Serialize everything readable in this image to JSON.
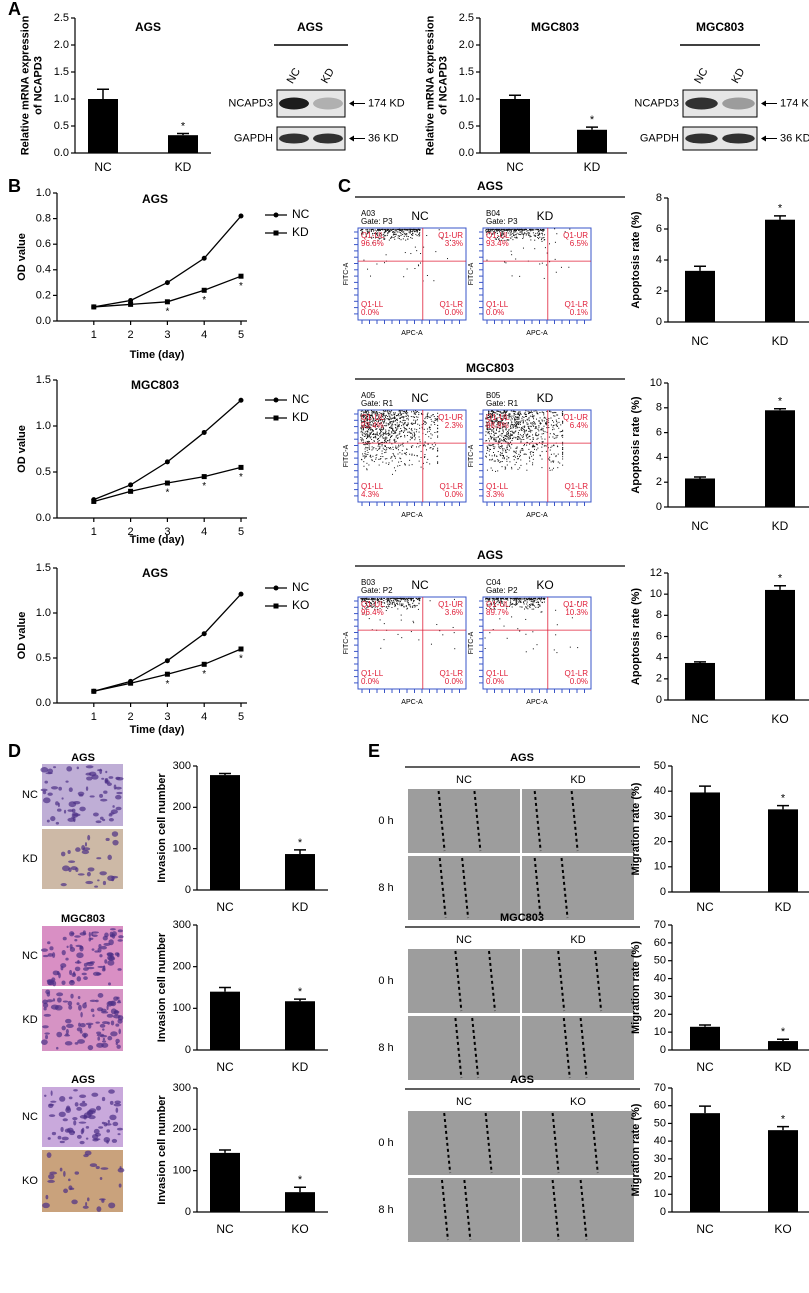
{
  "panel_labels": [
    "A",
    "B",
    "C",
    "D",
    "E"
  ],
  "blots": [
    {
      "title": "AGS",
      "lanes": [
        "NC",
        "KD"
      ],
      "bands": [
        {
          "name": "NCAPD3",
          "size": "174 KD"
        },
        {
          "name": "GAPDH",
          "size": "36 KD"
        }
      ]
    },
    {
      "title": "MGC803",
      "lanes": [
        "NC",
        "KD"
      ],
      "bands": [
        {
          "name": "NCAPD3",
          "size": "174 KD"
        },
        {
          "name": "GAPDH",
          "size": "36 KD"
        }
      ]
    }
  ],
  "flow_axes": {
    "x": "APC-A",
    "y": "FITC-A"
  },
  "flow_panels": [
    {
      "title": "AGS",
      "plots": [
        {
          "group": "NC",
          "sample": "A03",
          "gate": "Gate: P3",
          "quadrants": [
            [
              "Q1-UL",
              "96.6%"
            ],
            [
              "Q1-UR",
              "3.3%"
            ],
            [
              "Q1-LL",
              "0.0%"
            ],
            [
              "Q1-LR",
              "0.0%"
            ]
          ]
        },
        {
          "group": "KD",
          "sample": "B04",
          "gate": "Gate: P3",
          "quadrants": [
            [
              "Q1-UL",
              "93.4%"
            ],
            [
              "Q1-UR",
              "6.5%"
            ],
            [
              "Q1-LL",
              "0.0%"
            ],
            [
              "Q1-LR",
              "0.1%"
            ]
          ]
        }
      ]
    },
    {
      "title": "MGC803",
      "plots": [
        {
          "group": "NC",
          "sample": "A05",
          "gate": "Gate: R1",
          "quadrants": [
            [
              "Q1-UL",
              "93.4%"
            ],
            [
              "Q1-UR",
              "2.3%"
            ],
            [
              "Q1-LL",
              "4.3%"
            ],
            [
              "Q1-LR",
              "0.0%"
            ]
          ]
        },
        {
          "group": "KD",
          "sample": "B05",
          "gate": "Gate: R1",
          "quadrants": [
            [
              "Q1-UL",
              "88.8%"
            ],
            [
              "Q1-UR",
              "6.4%"
            ],
            [
              "Q1-LL",
              "3.3%"
            ],
            [
              "Q1-LR",
              "1.5%"
            ]
          ]
        }
      ]
    },
    {
      "title": "AGS",
      "plots": [
        {
          "group": "NC",
          "sample": "B03",
          "gate": "Gate: P2",
          "quadrants": [
            [
              "Q1-UL",
              "96.4%"
            ],
            [
              "Q1-UR",
              "3.6%"
            ],
            [
              "Q1-LL",
              "0.0%"
            ],
            [
              "Q1-LR",
              "0.0%"
            ]
          ]
        },
        {
          "group": "KO",
          "sample": "C04",
          "gate": "Gate: P2",
          "quadrants": [
            [
              "Q1-UL",
              "89.7%"
            ],
            [
              "Q1-UR",
              "10.3%"
            ],
            [
              "Q1-LL",
              "0.0%"
            ],
            [
              "Q1-LR",
              "0.0%"
            ]
          ]
        }
      ]
    }
  ],
  "invasion_panels": [
    {
      "title": "AGS",
      "rows": [
        "NC",
        "KD"
      ]
    },
    {
      "title": "MGC803",
      "rows": [
        "NC",
        "KD"
      ]
    },
    {
      "title": "AGS",
      "rows": [
        "NC",
        "KO"
      ]
    }
  ],
  "wound_panels": [
    {
      "title": "AGS",
      "columns": [
        "NC",
        "KD"
      ],
      "rows": [
        "0 h",
        "8 h"
      ]
    },
    {
      "title": "MGC803",
      "columns": [
        "NC",
        "KD"
      ],
      "rows": [
        "0 h",
        "8 h"
      ]
    },
    {
      "title": "AGS",
      "columns": [
        "NC",
        "KO"
      ],
      "rows": [
        "0 h",
        "8 h"
      ]
    }
  ],
  "chart_data": [
    {
      "type": "bar",
      "title": "AGS",
      "ylabel": [
        "Relative mRNA expression",
        "of NCAPD3"
      ],
      "categories": [
        "NC",
        "KD"
      ],
      "values": [
        1.0,
        0.33
      ],
      "errors": [
        0.18,
        0.03
      ],
      "significance": [
        null,
        "*"
      ],
      "color": "#000000",
      "ylim": [
        0,
        2.5
      ],
      "yticks": [
        {
          "value": 0,
          "label": "0.0"
        },
        0.5,
        {
          "value": 1,
          "label": "1.0"
        },
        1.5,
        {
          "value": 2,
          "label": "2.0"
        },
        2.5
      ]
    },
    {
      "type": "bar",
      "title": "MGC803",
      "ylabel": [
        "Relative mRNA expression",
        "of NCAPD3"
      ],
      "categories": [
        "NC",
        "KD"
      ],
      "values": [
        1.0,
        0.43
      ],
      "errors": [
        0.07,
        0.05
      ],
      "significance": [
        null,
        "*"
      ],
      "color": "#000000",
      "ylim": [
        0,
        2.5
      ],
      "yticks": [
        {
          "value": 0,
          "label": "0.0"
        },
        0.5,
        {
          "value": 1,
          "label": "1.0"
        },
        1.5,
        {
          "value": 2,
          "label": "2.0"
        },
        2.5
      ]
    },
    {
      "type": "line",
      "title": "AGS",
      "xlabel": "Time (day)",
      "ylabel": "OD value",
      "x": [
        1,
        2,
        3,
        4,
        5
      ],
      "xlim": [
        0,
        5
      ],
      "xticks": [
        1,
        2,
        3,
        4,
        5
      ],
      "ylim": [
        0,
        1
      ],
      "yticks": [
        {
          "value": 0,
          "label": "0.0"
        },
        0.2,
        0.4,
        0.6,
        0.8,
        {
          "value": 1,
          "label": "1.0"
        }
      ],
      "series": [
        {
          "name": "NC",
          "color": "#000000",
          "marker": "circle",
          "values": [
            0.11,
            0.16,
            0.3,
            0.49,
            0.82
          ]
        },
        {
          "name": "KD",
          "color": "#000000",
          "marker": "square",
          "values": [
            0.11,
            0.13,
            0.15,
            0.24,
            0.35
          ]
        }
      ],
      "significance": [
        null,
        null,
        "*",
        "*",
        "*"
      ]
    },
    {
      "type": "line",
      "title": "MGC803",
      "xlabel": "Time (day)",
      "ylabel": "OD value",
      "x": [
        1,
        2,
        3,
        4,
        5
      ],
      "xlim": [
        0,
        5
      ],
      "xticks": [
        1,
        2,
        3,
        4,
        5
      ],
      "ylim": [
        0,
        1.5
      ],
      "yticks": [
        {
          "value": 0,
          "label": "0.0"
        },
        0.5,
        {
          "value": 1,
          "label": "1.0"
        },
        1.5
      ],
      "series": [
        {
          "name": "NC",
          "color": "#000000",
          "marker": "circle",
          "values": [
            0.2,
            0.36,
            0.61,
            0.93,
            1.28
          ]
        },
        {
          "name": "KD",
          "color": "#000000",
          "marker": "square",
          "values": [
            0.18,
            0.29,
            0.38,
            0.45,
            0.55
          ]
        }
      ],
      "significance": [
        null,
        null,
        "*",
        "*",
        "*"
      ]
    },
    {
      "type": "line",
      "title": "AGS",
      "xlabel": "Time (day)",
      "ylabel": "OD value",
      "x": [
        1,
        2,
        3,
        4,
        5
      ],
      "xlim": [
        0,
        5
      ],
      "xticks": [
        1,
        2,
        3,
        4,
        5
      ],
      "ylim": [
        0,
        1.5
      ],
      "yticks": [
        {
          "value": 0,
          "label": "0.0"
        },
        0.5,
        {
          "value": 1,
          "label": "1.0"
        },
        1.5
      ],
      "series": [
        {
          "name": "NC",
          "color": "#000000",
          "marker": "circle",
          "values": [
            0.13,
            0.24,
            0.47,
            0.77,
            1.21
          ]
        },
        {
          "name": "KO",
          "color": "#000000",
          "marker": "square",
          "values": [
            0.13,
            0.22,
            0.32,
            0.43,
            0.6
          ]
        }
      ],
      "significance": [
        null,
        null,
        "*",
        "*",
        "*"
      ]
    },
    {
      "type": "bar",
      "ylabel": "Apoptosis rate (%)",
      "categories": [
        "NC",
        "KD"
      ],
      "values": [
        3.3,
        6.6
      ],
      "errors": [
        0.3,
        0.25
      ],
      "significance": [
        null,
        "*"
      ],
      "color": "#000000",
      "ylim": [
        0,
        8
      ],
      "yticks": [
        0,
        2,
        4,
        6,
        8
      ]
    },
    {
      "type": "bar",
      "ylabel": "Apoptosis rate (%)",
      "categories": [
        "NC",
        "KD"
      ],
      "values": [
        2.3,
        7.8
      ],
      "errors": [
        0.12,
        0.12
      ],
      "significance": [
        null,
        "*"
      ],
      "color": "#000000",
      "ylim": [
        0,
        10
      ],
      "yticks": [
        0,
        2,
        4,
        6,
        8,
        10
      ]
    },
    {
      "type": "bar",
      "ylabel": "Apoptosis rate (%)",
      "categories": [
        "NC",
        "KO"
      ],
      "values": [
        3.5,
        10.4
      ],
      "errors": [
        0.1,
        0.4
      ],
      "significance": [
        null,
        "*"
      ],
      "color": "#000000",
      "ylim": [
        0,
        12
      ],
      "yticks": [
        0,
        2,
        4,
        6,
        8,
        10,
        12
      ]
    },
    {
      "type": "bar",
      "ylabel": "Invasion cell number",
      "categories": [
        "NC",
        "KD"
      ],
      "values": [
        278,
        87
      ],
      "errors": [
        4,
        10
      ],
      "significance": [
        null,
        "*"
      ],
      "color": "#000000",
      "ylim": [
        0,
        300
      ],
      "yticks": [
        0,
        100,
        200,
        300
      ]
    },
    {
      "type": "bar",
      "ylabel": "Invasion cell number",
      "categories": [
        "NC",
        "KD"
      ],
      "values": [
        140,
        117
      ],
      "errors": [
        10,
        5
      ],
      "significance": [
        null,
        "*"
      ],
      "color": "#000000",
      "ylim": [
        0,
        300
      ],
      "yticks": [
        0,
        100,
        200,
        300
      ]
    },
    {
      "type": "bar",
      "ylabel": "Invasion cell number",
      "categories": [
        "NC",
        "KO"
      ],
      "values": [
        143,
        48
      ],
      "errors": [
        7,
        12
      ],
      "significance": [
        null,
        "*"
      ],
      "color": "#000000",
      "ylim": [
        0,
        300
      ],
      "yticks": [
        0,
        100,
        200,
        300
      ]
    },
    {
      "type": "bar",
      "ylabel": "Migration rate (%)",
      "categories": [
        "NC",
        "KD"
      ],
      "values": [
        39.5,
        32.8
      ],
      "errors": [
        2.5,
        1.5
      ],
      "significance": [
        null,
        "*"
      ],
      "color": "#000000",
      "ylim": [
        0,
        50
      ],
      "yticks": [
        0,
        10,
        20,
        30,
        40,
        50
      ]
    },
    {
      "type": "bar",
      "ylabel": "Migration rate (%)",
      "categories": [
        "NC",
        "KD"
      ],
      "values": [
        13,
        5
      ],
      "errors": [
        1,
        1
      ],
      "significance": [
        null,
        "*"
      ],
      "color": "#000000",
      "ylim": [
        0,
        70
      ],
      "yticks": [
        0,
        10,
        20,
        30,
        40,
        50,
        60,
        70
      ]
    },
    {
      "type": "bar",
      "ylabel": "Migration rate (%)",
      "categories": [
        "NC",
        "KO"
      ],
      "values": [
        55.8,
        46.2
      ],
      "errors": [
        4,
        2
      ],
      "significance": [
        null,
        "*"
      ],
      "color": "#000000",
      "ylim": [
        0,
        70
      ],
      "yticks": [
        0,
        10,
        20,
        30,
        40,
        50,
        60,
        70
      ]
    }
  ]
}
